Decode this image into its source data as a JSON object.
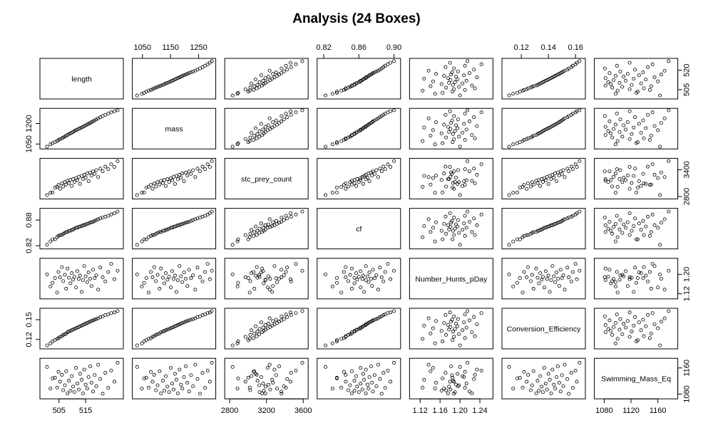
{
  "chart_data": {
    "type": "scatter",
    "subtype": "scatterplot-matrix",
    "title": "Analysis (24 Boxes)",
    "grid": false,
    "legend": "none",
    "variables": [
      {
        "name": "length",
        "range": [
          499,
          528
        ],
        "ticks": [
          505,
          515,
          520
        ],
        "tick_labels": [
          "505",
          "515",
          "520"
        ],
        "lower_ticks": [
          505,
          515
        ],
        "right_ticks": [
          505,
          520
        ]
      },
      {
        "name": "mass",
        "range": [
          1025,
          1300
        ],
        "ticks": [
          1050,
          1150,
          1200,
          1250
        ],
        "tick_labels": [
          "1050",
          "1150",
          "1200",
          "1250"
        ],
        "upper_ticks": [
          1050,
          1150,
          1250
        ],
        "left_ticks": [
          1050,
          1200
        ]
      },
      {
        "name": "stc_prey_count",
        "range": [
          2780,
          3620
        ],
        "ticks": [
          2800,
          3200,
          3400,
          3600
        ],
        "tick_labels": [
          "2800",
          "3200",
          "3400",
          "3600"
        ],
        "lower_ticks": [
          2800,
          3200,
          3600
        ],
        "right_ticks": [
          2800,
          3400
        ]
      },
      {
        "name": "cf",
        "range": [
          0.816,
          0.904
        ],
        "ticks": [
          0.82,
          0.86,
          0.88,
          0.9
        ],
        "tick_labels": [
          "0.82",
          "0.86",
          "0.88",
          "0.90"
        ],
        "upper_ticks": [
          0.82,
          0.86,
          0.9
        ],
        "left_ticks": [
          0.82,
          0.88
        ]
      },
      {
        "name": "Number_Hunts_pDay",
        "range": [
          1.105,
          1.26
        ],
        "ticks": [
          1.12,
          1.16,
          1.2
        ],
        "tick_labels": [
          "1.12",
          "1.16",
          "1.20"
        ],
        "lower_ticks": [
          1.12,
          1.16,
          1.2,
          1.24
        ],
        "right_ticks": [
          1.12,
          1.2
        ]
      },
      {
        "name": "Conversion_Efficiency",
        "range": [
          0.108,
          0.165
        ],
        "ticks": [
          0.12,
          0.14,
          0.15,
          0.16
        ],
        "tick_labels": [
          "0.12",
          "0.14",
          "0.15",
          "0.16"
        ],
        "upper_ticks": [
          0.12,
          0.14,
          0.16
        ],
        "left_ticks": [
          0.12,
          0.15
        ]
      },
      {
        "name": "Swimming_Mass_Eq",
        "range": [
          1070,
          1185
        ],
        "ticks": [
          1080,
          1120,
          1160
        ],
        "tick_labels": [
          "1080",
          "1120",
          "1160"
        ],
        "lower_ticks": [
          1080,
          1120,
          1160
        ],
        "right_ticks": [
          1080,
          1160
        ]
      }
    ],
    "extra_tick_labels": {
      "Number_Hunts_pDay": [
        "1.24"
      ]
    },
    "points": [
      [
        500.5,
        1031,
        2832,
        0.822,
        1.2,
        0.111,
        1163
      ],
      [
        501.8,
        1048,
        2885,
        0.83,
        1.15,
        0.114,
        1097
      ],
      [
        502.6,
        1056,
        2892,
        0.835,
        1.165,
        0.117,
        1128
      ],
      [
        503.5,
        1064,
        3002,
        0.835,
        1.185,
        0.119,
        1130
      ],
      [
        504.3,
        1072,
        3018,
        0.84,
        1.125,
        0.121,
        1100
      ],
      [
        504.8,
        1080,
        3060,
        0.843,
        1.21,
        0.122,
        1148
      ],
      [
        505.4,
        1086,
        2972,
        0.845,
        1.188,
        0.124,
        1118
      ],
      [
        506.1,
        1092,
        3095,
        0.845,
        1.23,
        0.125,
        1139
      ],
      [
        506.6,
        1098,
        3024,
        0.848,
        1.172,
        0.127,
        1092
      ],
      [
        507.2,
        1104,
        3122,
        0.85,
        1.198,
        0.128,
        1107
      ],
      [
        507.7,
        1111,
        3068,
        0.852,
        1.141,
        0.129,
        1150
      ],
      [
        508.2,
        1116,
        3153,
        0.852,
        1.224,
        0.131,
        1082
      ],
      [
        508.7,
        1123,
        3102,
        0.855,
        1.186,
        0.132,
        1121
      ],
      [
        509.3,
        1128,
        3170,
        0.855,
        1.163,
        0.133,
        1090
      ],
      [
        509.8,
        1133,
        3036,
        0.857,
        1.205,
        0.134,
        1135
      ],
      [
        510.3,
        1139,
        3190,
        0.858,
        1.178,
        0.135,
        1103
      ],
      [
        510.8,
        1145,
        3125,
        0.86,
        1.19,
        0.136,
        1086
      ],
      [
        511.4,
        1151,
        3213,
        0.862,
        1.146,
        0.137,
        1160
      ],
      [
        511.9,
        1156,
        3164,
        0.862,
        1.213,
        0.138,
        1112
      ],
      [
        512.4,
        1161,
        3241,
        0.864,
        1.181,
        0.139,
        1094
      ],
      [
        512.9,
        1166,
        3082,
        0.865,
        1.195,
        0.14,
        1142
      ],
      [
        513.5,
        1171,
        3262,
        0.866,
        1.128,
        0.141,
        1124
      ],
      [
        514.0,
        1176,
        3188,
        0.868,
        1.176,
        0.142,
        1082
      ],
      [
        514.5,
        1182,
        3287,
        0.868,
        1.234,
        0.143,
        1155
      ],
      [
        515.0,
        1187,
        3221,
        0.87,
        1.192,
        0.144,
        1109
      ],
      [
        515.6,
        1192,
        3315,
        0.871,
        1.168,
        0.145,
        1097
      ],
      [
        516.1,
        1198,
        3143,
        0.872,
        1.208,
        0.146,
        1132
      ],
      [
        516.7,
        1204,
        3338,
        0.874,
        1.182,
        0.147,
        1165
      ],
      [
        517.2,
        1210,
        3270,
        0.875,
        1.152,
        0.148,
        1115
      ],
      [
        517.8,
        1216,
        3362,
        0.876,
        1.219,
        0.149,
        1088
      ],
      [
        518.4,
        1223,
        3306,
        0.878,
        1.184,
        0.15,
        1138
      ],
      [
        519.0,
        1230,
        3390,
        0.88,
        1.196,
        0.151,
        1104
      ],
      [
        519.7,
        1238,
        3235,
        0.882,
        1.137,
        0.152,
        1170
      ],
      [
        520.5,
        1246,
        3425,
        0.884,
        1.228,
        0.154,
        1126
      ],
      [
        521.4,
        1255,
        3364,
        0.886,
        1.188,
        0.155,
        1081
      ],
      [
        522.4,
        1264,
        3468,
        0.888,
        1.171,
        0.157,
        1145
      ],
      [
        523.5,
        1273,
        3412,
        0.89,
        1.21,
        0.158,
        1099
      ],
      [
        524.6,
        1282,
        3520,
        0.893,
        1.243,
        0.16,
        1152
      ],
      [
        525.8,
        1290,
        3462,
        0.896,
        1.18,
        0.161,
        1118
      ],
      [
        527.0,
        1297,
        3590,
        0.9,
        1.215,
        0.163,
        1176
      ]
    ]
  }
}
